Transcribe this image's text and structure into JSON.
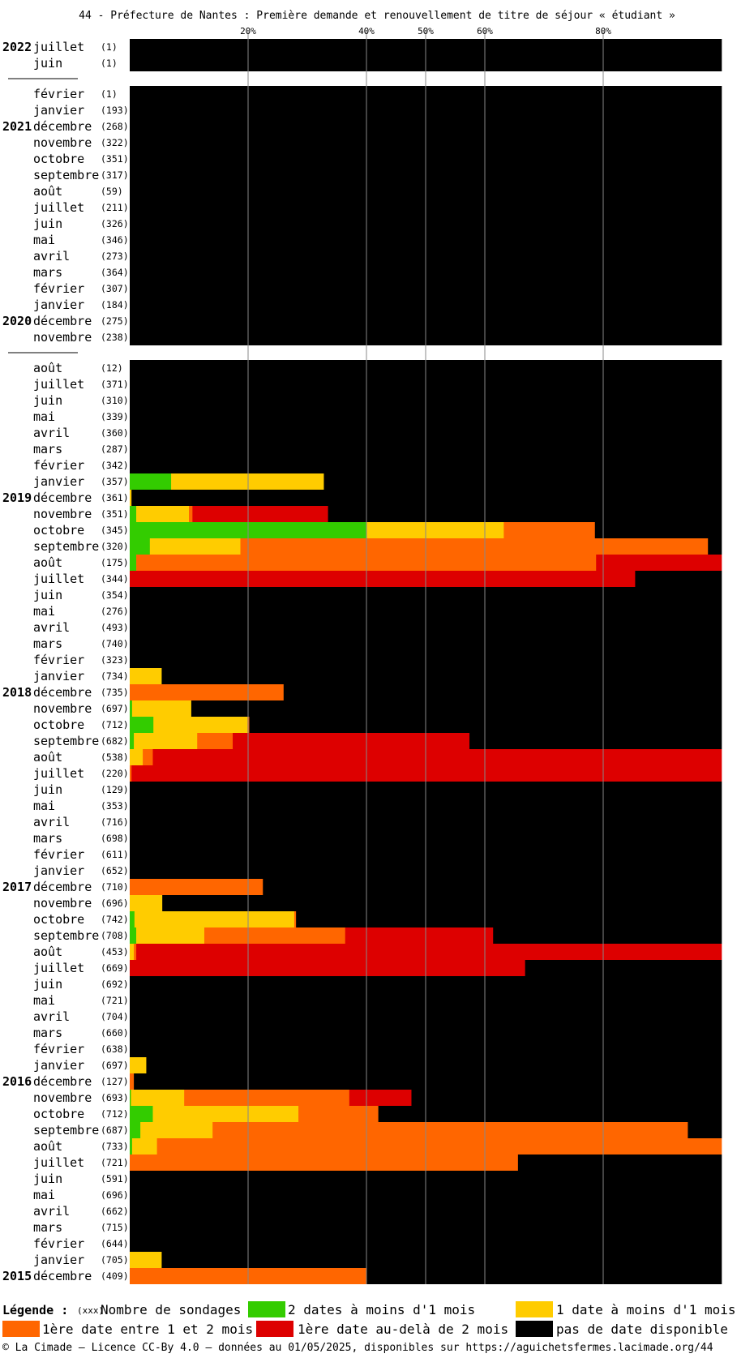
{
  "title": "44 - Préfecture de Nantes : Première demande et renouvellement de titre de séjour « étudiant »",
  "legend": {
    "title": "Légende :",
    "count_note": "(xxx)",
    "count_label": "Nombre de sondages",
    "items": [
      {
        "key": "green",
        "label": "2 dates à moins d'1 mois",
        "color": "#33cc00"
      },
      {
        "key": "yellow",
        "label": "1 date à moins d'1 mois",
        "color": "#ffcc00"
      },
      {
        "key": "orange",
        "label": "1ère date entre 1 et 2 mois",
        "color": "#ff6600"
      },
      {
        "key": "red",
        "label": "1ère date au-delà de 2 mois",
        "color": "#dd0000"
      },
      {
        "key": "black",
        "label": "pas de date disponible",
        "color": "#000000"
      }
    ]
  },
  "footer": "© La Cimade — Licence CC-By 4.0 — données au 01/05/2025, disponibles sur https://aguichetsfermes.lacimade.org/44",
  "chart_data": {
    "type": "bar",
    "orientation": "horizontal-stacked-percent",
    "x_ticks": [
      "20%",
      "40%",
      "50%",
      "60%",
      "80%"
    ],
    "xlim": [
      0,
      100
    ],
    "series": [
      "green",
      "yellow",
      "orange",
      "red",
      "black"
    ],
    "rows": [
      {
        "year": "2022",
        "month": "juillet",
        "count": "(1)",
        "v": [
          0,
          0,
          0,
          0,
          100
        ]
      },
      {
        "month": "juin",
        "count": "(1)",
        "v": [
          0,
          0,
          0,
          0,
          100
        ]
      },
      {
        "separator": true
      },
      {
        "month": "février",
        "count": "(1)",
        "v": [
          0,
          0,
          0,
          0,
          100
        ]
      },
      {
        "month": "janvier",
        "count": "(193)",
        "v": [
          0,
          0,
          0,
          0,
          100
        ]
      },
      {
        "year": "2021",
        "month": "décembre",
        "count": "(268)",
        "v": [
          0,
          0,
          0,
          0,
          100
        ]
      },
      {
        "month": "novembre",
        "count": "(322)",
        "v": [
          0,
          0,
          0,
          0,
          100
        ]
      },
      {
        "month": "octobre",
        "count": "(351)",
        "v": [
          0,
          0,
          0,
          0,
          100
        ]
      },
      {
        "month": "septembre",
        "count": "(317)",
        "v": [
          0,
          0,
          0,
          0,
          100
        ]
      },
      {
        "month": "août",
        "count": "(59)",
        "v": [
          0,
          0,
          0,
          0,
          100
        ]
      },
      {
        "month": "juillet",
        "count": "(211)",
        "v": [
          0,
          0,
          0,
          0,
          100
        ]
      },
      {
        "month": "juin",
        "count": "(326)",
        "v": [
          0,
          0,
          0,
          0,
          100
        ]
      },
      {
        "month": "mai",
        "count": "(346)",
        "v": [
          0,
          0,
          0,
          0,
          100
        ]
      },
      {
        "month": "avril",
        "count": "(273)",
        "v": [
          0,
          0,
          0,
          0,
          100
        ]
      },
      {
        "month": "mars",
        "count": "(364)",
        "v": [
          0,
          0,
          0,
          0,
          100
        ]
      },
      {
        "month": "février",
        "count": "(307)",
        "v": [
          0,
          0,
          0,
          0,
          100
        ]
      },
      {
        "month": "janvier",
        "count": "(184)",
        "v": [
          0,
          0,
          0,
          0,
          100
        ]
      },
      {
        "year": "2020",
        "month": "décembre",
        "count": "(275)",
        "v": [
          0,
          0,
          0,
          0,
          100
        ]
      },
      {
        "month": "novembre",
        "count": "(238)",
        "v": [
          0,
          0,
          0,
          0,
          100
        ]
      },
      {
        "separator": true
      },
      {
        "month": "août",
        "count": "(12)",
        "v": [
          0,
          0,
          0,
          0,
          100
        ]
      },
      {
        "month": "juillet",
        "count": "(371)",
        "v": [
          0,
          0,
          0,
          0,
          100
        ]
      },
      {
        "month": "juin",
        "count": "(310)",
        "v": [
          0,
          0,
          0,
          0,
          100
        ]
      },
      {
        "month": "mai",
        "count": "(339)",
        "v": [
          0,
          0,
          0,
          0,
          100
        ]
      },
      {
        "month": "avril",
        "count": "(360)",
        "v": [
          0,
          0,
          0,
          0,
          100
        ]
      },
      {
        "month": "mars",
        "count": "(287)",
        "v": [
          0,
          0,
          0,
          0,
          100
        ]
      },
      {
        "month": "février",
        "count": "(342)",
        "v": [
          0,
          0,
          0,
          0,
          100
        ]
      },
      {
        "month": "janvier",
        "count": "(357)",
        "v": [
          7,
          25.8,
          0,
          0,
          67.2
        ]
      },
      {
        "year": "2019",
        "month": "décembre",
        "count": "(361)",
        "v": [
          0,
          0.3,
          0,
          0,
          99.7
        ]
      },
      {
        "month": "novembre",
        "count": "(351)",
        "v": [
          1.1,
          8.9,
          0.6,
          22.9,
          66.5
        ]
      },
      {
        "month": "octobre",
        "count": "(345)",
        "v": [
          40,
          23.2,
          15.4,
          0,
          21.4
        ]
      },
      {
        "month": "septembre",
        "count": "(320)",
        "v": [
          3.4,
          15.3,
          79,
          0,
          2.3
        ]
      },
      {
        "month": "août",
        "count": "(175)",
        "v": [
          1.1,
          0,
          77.7,
          21.2,
          0
        ]
      },
      {
        "month": "juillet",
        "count": "(344)",
        "v": [
          0,
          0,
          0,
          85.4,
          14.6
        ]
      },
      {
        "month": "juin",
        "count": "(354)",
        "v": [
          0,
          0,
          0,
          0,
          100
        ]
      },
      {
        "month": "mai",
        "count": "(276)",
        "v": [
          0,
          0,
          0,
          0,
          100
        ]
      },
      {
        "month": "avril",
        "count": "(493)",
        "v": [
          0,
          0,
          0,
          0,
          100
        ]
      },
      {
        "month": "mars",
        "count": "(740)",
        "v": [
          0,
          0,
          0,
          0,
          100
        ]
      },
      {
        "month": "février",
        "count": "(323)",
        "v": [
          0,
          0,
          0,
          0,
          100
        ]
      },
      {
        "month": "janvier",
        "count": "(734)",
        "v": [
          0,
          5.4,
          0,
          0,
          94.6
        ]
      },
      {
        "year": "2018",
        "month": "décembre",
        "count": "(735)",
        "v": [
          0,
          0,
          26,
          0,
          74
        ]
      },
      {
        "month": "novembre",
        "count": "(697)",
        "v": [
          0.4,
          10,
          0,
          0,
          89.6
        ]
      },
      {
        "month": "octobre",
        "count": "(712)",
        "v": [
          4,
          15.9,
          0.3,
          0,
          79.8
        ]
      },
      {
        "month": "septembre",
        "count": "(682)",
        "v": [
          0.7,
          10.7,
          6,
          40,
          42.6
        ]
      },
      {
        "month": "août",
        "count": "(538)",
        "v": [
          0,
          2.2,
          1.7,
          96.1,
          0
        ]
      },
      {
        "month": "juillet",
        "count": "(220)",
        "v": [
          0,
          0,
          0.3,
          99.7,
          0
        ]
      },
      {
        "month": "juin",
        "count": "(129)",
        "v": [
          0,
          0,
          0,
          0,
          100
        ]
      },
      {
        "month": "mai",
        "count": "(353)",
        "v": [
          0,
          0,
          0,
          0,
          100
        ]
      },
      {
        "month": "avril",
        "count": "(716)",
        "v": [
          0,
          0,
          0,
          0,
          100
        ]
      },
      {
        "month": "mars",
        "count": "(698)",
        "v": [
          0,
          0,
          0,
          0,
          100
        ]
      },
      {
        "month": "février",
        "count": "(611)",
        "v": [
          0,
          0,
          0,
          0,
          100
        ]
      },
      {
        "month": "janvier",
        "count": "(652)",
        "v": [
          0,
          0,
          0,
          0,
          100
        ]
      },
      {
        "year": "2017",
        "month": "décembre",
        "count": "(710)",
        "v": [
          0,
          0,
          22.5,
          0,
          77.5
        ]
      },
      {
        "month": "novembre",
        "count": "(696)",
        "v": [
          0,
          5.5,
          0,
          0,
          94.5
        ]
      },
      {
        "month": "octobre",
        "count": "(742)",
        "v": [
          0.8,
          27,
          0.3,
          0,
          71.9
        ]
      },
      {
        "month": "septembre",
        "count": "(708)",
        "v": [
          1.1,
          11.5,
          23.8,
          25,
          38.6
        ]
      },
      {
        "month": "août",
        "count": "(453)",
        "v": [
          0,
          0.7,
          0.4,
          98.9,
          0
        ]
      },
      {
        "month": "juillet",
        "count": "(669)",
        "v": [
          0,
          0,
          0,
          66.8,
          33.2
        ]
      },
      {
        "month": "juin",
        "count": "(692)",
        "v": [
          0,
          0,
          0,
          0,
          100
        ]
      },
      {
        "month": "mai",
        "count": "(721)",
        "v": [
          0,
          0,
          0,
          0,
          100
        ]
      },
      {
        "month": "avril",
        "count": "(704)",
        "v": [
          0,
          0,
          0,
          0,
          100
        ]
      },
      {
        "month": "mars",
        "count": "(660)",
        "v": [
          0,
          0,
          0,
          0,
          100
        ]
      },
      {
        "month": "février",
        "count": "(638)",
        "v": [
          0,
          0,
          0,
          0,
          100
        ]
      },
      {
        "month": "janvier",
        "count": "(697)",
        "v": [
          0,
          2.8,
          0,
          0,
          97.2
        ]
      },
      {
        "year": "2016",
        "month": "décembre",
        "count": "(127)",
        "v": [
          0,
          0,
          0.7,
          0,
          99.3
        ]
      },
      {
        "month": "novembre",
        "count": "(693)",
        "v": [
          0.2,
          9,
          27.9,
          10.5,
          52.4
        ]
      },
      {
        "month": "octobre",
        "count": "(712)",
        "v": [
          3.9,
          24.6,
          13.5,
          0,
          58
        ]
      },
      {
        "month": "septembre",
        "count": "(687)",
        "v": [
          1.8,
          12.2,
          80.3,
          0,
          5.7
        ]
      },
      {
        "month": "août",
        "count": "(733)",
        "v": [
          0.4,
          4.2,
          95.4,
          0,
          0
        ]
      },
      {
        "month": "juillet",
        "count": "(721)",
        "v": [
          0,
          0,
          65.6,
          0,
          34.4
        ]
      },
      {
        "month": "juin",
        "count": "(591)",
        "v": [
          0,
          0,
          0,
          0,
          100
        ]
      },
      {
        "month": "mai",
        "count": "(696)",
        "v": [
          0,
          0,
          0,
          0,
          100
        ]
      },
      {
        "month": "avril",
        "count": "(662)",
        "v": [
          0,
          0,
          0,
          0,
          100
        ]
      },
      {
        "month": "mars",
        "count": "(715)",
        "v": [
          0,
          0,
          0,
          0,
          100
        ]
      },
      {
        "month": "février",
        "count": "(644)",
        "v": [
          0,
          0,
          0,
          0,
          100
        ]
      },
      {
        "month": "janvier",
        "count": "(705)",
        "v": [
          0,
          5.4,
          0,
          0,
          94.6
        ]
      },
      {
        "year": "2015",
        "month": "décembre",
        "count": "(409)",
        "v": [
          0,
          0,
          40,
          0,
          60
        ]
      }
    ]
  }
}
